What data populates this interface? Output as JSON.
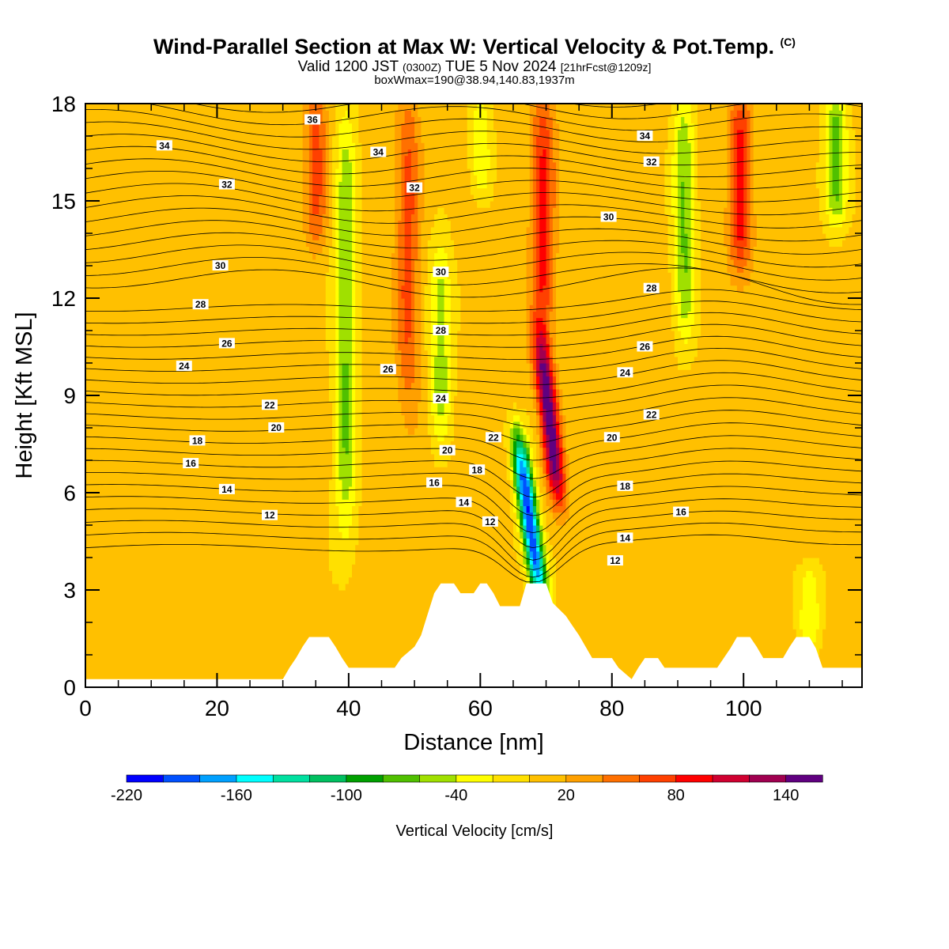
{
  "header": {
    "title": "Wind-Parallel Section at Max W: Vertical Velocity & Pot.Temp.",
    "title_tag": "(C)",
    "valid_prefix": "Valid 1200 JST",
    "valid_zulu": "(0300Z)",
    "valid_date": "TUE 5 Nov 2024",
    "forecast_info": "[21hrFcst@1209z]",
    "box_info": "boxWmax=190@38.94,140.83,1937m"
  },
  "chart_data": {
    "type": "heatmap",
    "xlabel": "Distance [nm]",
    "ylabel": "Height [Kft MSL]",
    "xlim": [
      0,
      118
    ],
    "ylim": [
      0,
      18
    ],
    "x_ticks": [
      "0",
      "20",
      "40",
      "60",
      "80",
      "100"
    ],
    "y_ticks": [
      "0",
      "3",
      "6",
      "9",
      "12",
      "15",
      "18"
    ],
    "colorbar": {
      "label": "Vertical Velocity [cm/s]",
      "tick_labels": [
        "-220",
        "-160",
        "-100",
        "-40",
        "20",
        "80",
        "140"
      ],
      "levels": [
        -220,
        -200,
        -180,
        -160,
        -140,
        -120,
        -100,
        -80,
        -60,
        -40,
        -20,
        0,
        20,
        40,
        60,
        80,
        100,
        120,
        140,
        160
      ],
      "colors": [
        "#0000ff",
        "#0050ff",
        "#00a0ff",
        "#00ffff",
        "#00e0a0",
        "#00c060",
        "#00a000",
        "#50c000",
        "#a0e000",
        "#ffff00",
        "#ffe000",
        "#ffc000",
        "#ffa000",
        "#ff7000",
        "#ff4000",
        "#ff0000",
        "#d00030",
        "#a00050",
        "#600080"
      ]
    },
    "vertical_velocity_features": [
      {
        "kind": "downdraft",
        "x": 67.5,
        "y_range": [
          2.8,
          7.5
        ],
        "min_cm_s": -210
      },
      {
        "kind": "updraft",
        "x": 70.5,
        "y_range": [
          6.0,
          10.5
        ],
        "max_cm_s": 150
      },
      {
        "kind": "updraft",
        "x": 35,
        "y_range": [
          14,
          18
        ],
        "max_cm_s": 60
      },
      {
        "kind": "downdraft",
        "x": 39.5,
        "y_range": [
          4.5,
          17.5
        ],
        "min_cm_s": -70
      },
      {
        "kind": "updraft",
        "x": 49,
        "y_range": [
          9,
          18
        ],
        "max_cm_s": 60
      },
      {
        "kind": "downdraft",
        "x": 54,
        "y_range": [
          8,
          13.5
        ],
        "min_cm_s": -60
      },
      {
        "kind": "downdraft",
        "x": 60,
        "y_range": [
          15.5,
          18
        ],
        "min_cm_s": -40
      },
      {
        "kind": "updraft",
        "x": 69.5,
        "y_range": [
          11,
          18
        ],
        "max_cm_s": 80
      },
      {
        "kind": "downdraft",
        "x": 91,
        "y_range": [
          11,
          18
        ],
        "min_cm_s": -70
      },
      {
        "kind": "updraft",
        "x": 99.5,
        "y_range": [
          13,
          18
        ],
        "max_cm_s": 80
      },
      {
        "kind": "downdraft",
        "x": 114,
        "y_range": [
          14.5,
          18
        ],
        "min_cm_s": -80
      },
      {
        "kind": "downdraft",
        "x": 110,
        "y_range": [
          1.5,
          3.5
        ],
        "min_cm_s": -50
      }
    ],
    "potential_temperature_labels": [
      {
        "text": "36",
        "x": 34.5,
        "y": 17.5
      },
      {
        "text": "34",
        "x": 12,
        "y": 16.7
      },
      {
        "text": "34",
        "x": 44.5,
        "y": 16.5
      },
      {
        "text": "34",
        "x": 85,
        "y": 17.0
      },
      {
        "text": "32",
        "x": 21.5,
        "y": 15.5
      },
      {
        "text": "32",
        "x": 50,
        "y": 15.4
      },
      {
        "text": "32",
        "x": 86,
        "y": 16.2
      },
      {
        "text": "30",
        "x": 20.5,
        "y": 13.0
      },
      {
        "text": "30",
        "x": 54,
        "y": 12.8
      },
      {
        "text": "30",
        "x": 79.5,
        "y": 14.5
      },
      {
        "text": "28",
        "x": 17.5,
        "y": 11.8
      },
      {
        "text": "28",
        "x": 54,
        "y": 11.0
      },
      {
        "text": "28",
        "x": 86,
        "y": 12.3
      },
      {
        "text": "26",
        "x": 21.5,
        "y": 10.6
      },
      {
        "text": "26",
        "x": 46,
        "y": 9.8
      },
      {
        "text": "26",
        "x": 85,
        "y": 10.5
      },
      {
        "text": "24",
        "x": 15,
        "y": 9.9
      },
      {
        "text": "24",
        "x": 54,
        "y": 8.9
      },
      {
        "text": "24",
        "x": 82,
        "y": 9.7
      },
      {
        "text": "22",
        "x": 28,
        "y": 8.7
      },
      {
        "text": "22",
        "x": 62,
        "y": 7.7
      },
      {
        "text": "22",
        "x": 86,
        "y": 8.4
      },
      {
        "text": "20",
        "x": 29,
        "y": 8.0
      },
      {
        "text": "20",
        "x": 55,
        "y": 7.3
      },
      {
        "text": "20",
        "x": 80,
        "y": 7.7
      },
      {
        "text": "18",
        "x": 17,
        "y": 7.6
      },
      {
        "text": "18",
        "x": 59.5,
        "y": 6.7
      },
      {
        "text": "18",
        "x": 82,
        "y": 6.2
      },
      {
        "text": "16",
        "x": 16,
        "y": 6.9
      },
      {
        "text": "16",
        "x": 53,
        "y": 6.3
      },
      {
        "text": "16",
        "x": 90.5,
        "y": 5.4
      },
      {
        "text": "14",
        "x": 21.5,
        "y": 6.1
      },
      {
        "text": "14",
        "x": 57.5,
        "y": 5.7
      },
      {
        "text": "14",
        "x": 82,
        "y": 4.6
      },
      {
        "text": "12",
        "x": 28,
        "y": 5.3
      },
      {
        "text": "12",
        "x": 61.5,
        "y": 5.1
      },
      {
        "text": "12",
        "x": 80.5,
        "y": 3.9
      }
    ],
    "terrain_kft": [
      [
        0,
        0.25
      ],
      [
        30,
        0.25
      ],
      [
        31,
        0.6
      ],
      [
        32,
        0.9
      ],
      [
        33,
        1.25
      ],
      [
        34,
        1.55
      ],
      [
        37,
        1.55
      ],
      [
        38,
        1.25
      ],
      [
        39,
        0.9
      ],
      [
        40,
        0.6
      ],
      [
        47,
        0.6
      ],
      [
        48,
        0.9
      ],
      [
        50,
        1.25
      ],
      [
        51,
        1.6
      ],
      [
        52,
        2.25
      ],
      [
        53,
        2.9
      ],
      [
        54,
        3.2
      ],
      [
        56,
        3.2
      ],
      [
        57,
        2.9
      ],
      [
        59,
        2.9
      ],
      [
        60,
        3.2
      ],
      [
        61,
        3.2
      ],
      [
        62,
        2.9
      ],
      [
        63,
        2.5
      ],
      [
        66,
        2.5
      ],
      [
        67,
        3.2
      ],
      [
        70,
        3.2
      ],
      [
        71,
        2.6
      ],
      [
        73,
        2.2
      ],
      [
        74,
        1.9
      ],
      [
        75,
        1.6
      ],
      [
        76,
        1.25
      ],
      [
        77,
        0.9
      ],
      [
        80,
        0.9
      ],
      [
        81,
        0.6
      ],
      [
        83,
        0.25
      ],
      [
        84,
        0.6
      ],
      [
        85,
        0.9
      ],
      [
        87,
        0.9
      ],
      [
        88,
        0.6
      ],
      [
        96,
        0.6
      ],
      [
        97,
        0.9
      ],
      [
        98,
        1.2
      ],
      [
        99,
        1.55
      ],
      [
        101,
        1.55
      ],
      [
        102,
        1.25
      ],
      [
        103,
        0.9
      ],
      [
        106,
        0.9
      ],
      [
        107,
        1.25
      ],
      [
        108,
        1.55
      ],
      [
        110,
        1.55
      ],
      [
        111,
        1.2
      ],
      [
        112,
        0.6
      ],
      [
        118,
        0.6
      ]
    ]
  }
}
